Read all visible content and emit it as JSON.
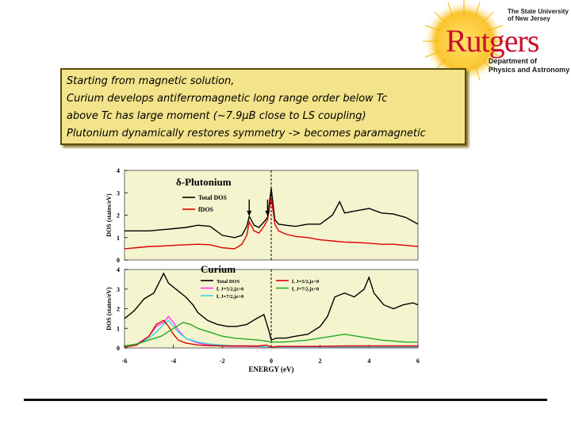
{
  "logo": {
    "university": [
      "The State University",
      "of New Jersey"
    ],
    "name": "Rutgers",
    "department": [
      "Department of",
      "Physics and Astronomy"
    ]
  },
  "textbox": {
    "lines": [
      "Starting from magnetic solution,",
      "Curium develops antiferromagnetic long range order below Tc",
      "above Tc has large moment (~7.9μB close to LS coupling)",
      "Plutonium dynamically restores symmetry -> becomes paramagnetic"
    ]
  },
  "chart_data": [
    {
      "type": "line",
      "title": "δ-Plutonium",
      "ylabel": "DOS (states/eV)",
      "xlim": [
        -6,
        6
      ],
      "ylim": [
        0,
        4
      ],
      "yticks": [
        "0",
        "1",
        "2",
        "3",
        "4"
      ],
      "legend_placement": "top-left",
      "series": [
        {
          "name": "Total DOS",
          "color": "#000000",
          "x": [
            -6,
            -5.5,
            -5,
            -4.5,
            -4,
            -3.5,
            -3,
            -2.5,
            -2,
            -1.5,
            -1.2,
            -1,
            -0.9,
            -0.7,
            -0.5,
            -0.3,
            -0.15,
            0,
            0.15,
            0.3,
            0.6,
            1,
            1.5,
            2,
            2.5,
            2.8,
            3,
            3.5,
            4,
            4.5,
            5,
            5.5,
            6
          ],
          "y": [
            1.3,
            1.3,
            1.3,
            1.35,
            1.4,
            1.45,
            1.55,
            1.5,
            1.1,
            1.0,
            1.1,
            1.5,
            1.95,
            1.55,
            1.45,
            1.7,
            1.9,
            3.2,
            1.8,
            1.6,
            1.55,
            1.5,
            1.6,
            1.6,
            2.0,
            2.6,
            2.1,
            2.2,
            2.3,
            2.1,
            2.05,
            1.9,
            1.6
          ]
        },
        {
          "name": "fDOS",
          "color": "#e00000",
          "x": [
            -6,
            -5.5,
            -5,
            -4.5,
            -4,
            -3.5,
            -3,
            -2.5,
            -2,
            -1.5,
            -1.2,
            -1,
            -0.9,
            -0.7,
            -0.5,
            -0.3,
            -0.15,
            0,
            0.15,
            0.3,
            0.6,
            1,
            1.5,
            2,
            2.5,
            3,
            3.5,
            4,
            4.5,
            5,
            5.5,
            6
          ],
          "y": [
            0.5,
            0.55,
            0.6,
            0.62,
            0.65,
            0.68,
            0.7,
            0.68,
            0.55,
            0.5,
            0.7,
            1.1,
            1.7,
            1.3,
            1.2,
            1.5,
            1.8,
            2.8,
            1.6,
            1.3,
            1.15,
            1.05,
            1.0,
            0.9,
            0.85,
            0.8,
            0.78,
            0.75,
            0.7,
            0.7,
            0.65,
            0.6
          ]
        }
      ]
    },
    {
      "type": "line",
      "title": "Curium",
      "ylabel": "DOS (states/eV)",
      "xlabel": "ENERGY (eV)",
      "xlim": [
        -6,
        6
      ],
      "ylim": [
        0,
        4
      ],
      "xticks": [
        "-6",
        "-4",
        "-2",
        "0",
        "2",
        "4",
        "6"
      ],
      "yticks": [
        "0",
        "1",
        "2",
        "3",
        "4"
      ],
      "legend_placement": "top-center",
      "series": [
        {
          "name": "Total DOS",
          "color": "#000000",
          "x": [
            -6,
            -5.6,
            -5.2,
            -4.8,
            -4.4,
            -4.2,
            -4,
            -3.8,
            -3.5,
            -3.2,
            -3,
            -2.6,
            -2.2,
            -1.8,
            -1.4,
            -1,
            -0.6,
            -0.3,
            -0.1,
            0,
            0.2,
            0.6,
            1,
            1.5,
            2,
            2.3,
            2.6,
            3,
            3.4,
            3.8,
            4,
            4.2,
            4.6,
            5,
            5.4,
            5.8,
            6
          ],
          "y": [
            1.5,
            1.9,
            2.5,
            2.8,
            3.8,
            3.3,
            3.1,
            2.9,
            2.6,
            2.2,
            1.8,
            1.4,
            1.2,
            1.1,
            1.1,
            1.2,
            1.5,
            1.7,
            0.9,
            0.4,
            0.5,
            0.5,
            0.6,
            0.7,
            1.1,
            1.6,
            2.6,
            2.8,
            2.6,
            3.0,
            3.6,
            2.8,
            2.2,
            2.0,
            2.2,
            2.3,
            2.2
          ]
        },
        {
          "name": "f, J=5/2,jz>0",
          "color": "#ff33ff",
          "x": [
            -6,
            -5.5,
            -5,
            -4.7,
            -4.4,
            -4.2,
            -4,
            -3.8,
            -3.5,
            -3,
            -2.5,
            -2,
            -1.5,
            -1,
            -0.5,
            0,
            0.5,
            1,
            2,
            3,
            4,
            5,
            6
          ],
          "y": [
            0.05,
            0.2,
            0.6,
            1.1,
            1.3,
            1.6,
            1.3,
            0.9,
            0.5,
            0.25,
            0.15,
            0.1,
            0.08,
            0.08,
            0.06,
            0.05,
            0.04,
            0.04,
            0.04,
            0.05,
            0.05,
            0.05,
            0.05
          ]
        },
        {
          "name": "f, J=7/2,jz>0",
          "color": "#33dddd",
          "x": [
            -6,
            -5.5,
            -5,
            -4.7,
            -4.4,
            -4.2,
            -4,
            -3.8,
            -3.5,
            -3,
            -2.5,
            -2,
            -1.5,
            -1,
            -0.5,
            0,
            0.5,
            1,
            2,
            3,
            4,
            5,
            6
          ],
          "y": [
            0.05,
            0.15,
            0.5,
            0.8,
            1.2,
            1.4,
            1.1,
            0.8,
            0.5,
            0.3,
            0.2,
            0.15,
            0.1,
            0.1,
            0.08,
            0.05,
            0.05,
            0.05,
            0.05,
            0.06,
            0.06,
            0.06,
            0.06
          ]
        },
        {
          "name": "f, J=5/2,jz<0",
          "color": "#e00000",
          "x": [
            -6,
            -5.5,
            -5,
            -4.7,
            -4.4,
            -4.2,
            -4,
            -3.8,
            -3.5,
            -3,
            -2.5,
            -2,
            -1.5,
            -1,
            -0.5,
            -0.2,
            0,
            0.3,
            1,
            2,
            3,
            4,
            5,
            6
          ],
          "y": [
            0.05,
            0.15,
            0.6,
            1.2,
            1.4,
            1.1,
            0.7,
            0.4,
            0.25,
            0.15,
            0.12,
            0.1,
            0.1,
            0.1,
            0.1,
            0.15,
            0.05,
            0.08,
            0.08,
            0.08,
            0.1,
            0.1,
            0.1,
            0.1
          ]
        },
        {
          "name": "f, J=7/2,jz<0",
          "color": "#22aa22",
          "x": [
            -6,
            -5.5,
            -5,
            -4.5,
            -4,
            -3.6,
            -3.3,
            -3,
            -2.5,
            -2,
            -1.5,
            -1,
            -0.5,
            0,
            0.5,
            1,
            1.5,
            2,
            2.5,
            3,
            3.5,
            4,
            4.5,
            5,
            5.5,
            6
          ],
          "y": [
            0.1,
            0.2,
            0.4,
            0.6,
            1.0,
            1.3,
            1.2,
            1.0,
            0.8,
            0.6,
            0.5,
            0.45,
            0.4,
            0.3,
            0.3,
            0.35,
            0.4,
            0.5,
            0.6,
            0.7,
            0.6,
            0.5,
            0.4,
            0.35,
            0.3,
            0.3
          ]
        }
      ]
    }
  ]
}
